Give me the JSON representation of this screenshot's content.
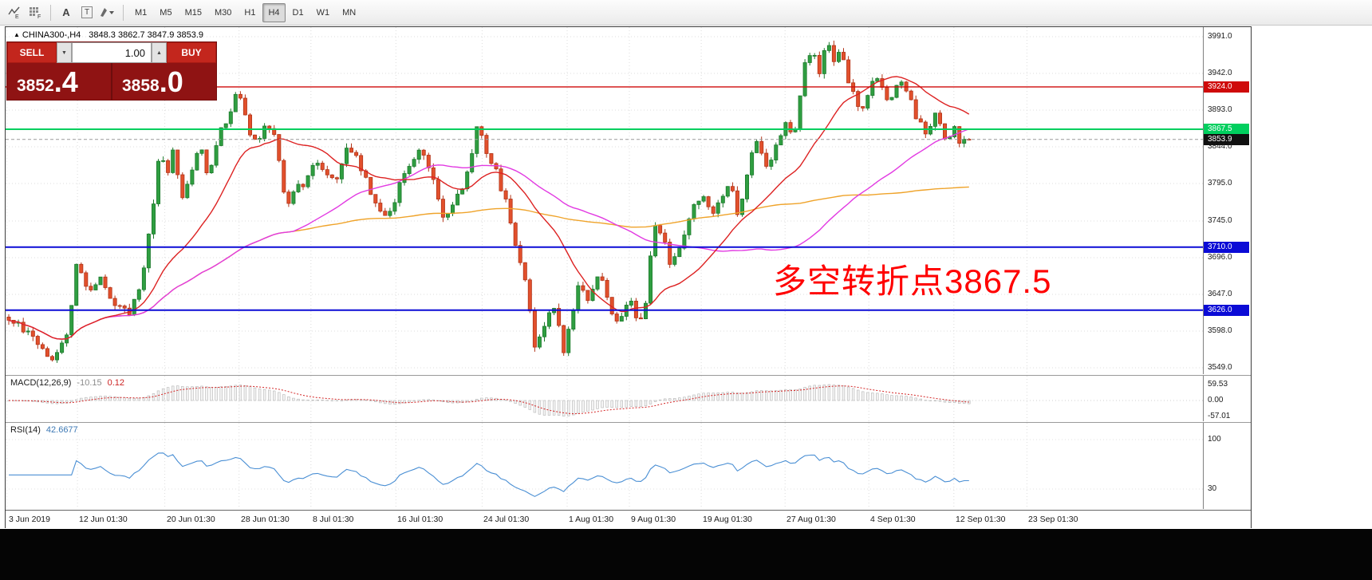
{
  "toolbar": {
    "icons": [
      {
        "name": "line-studies-icon",
        "sub": "E"
      },
      {
        "name": "indicator-grid-icon",
        "sub": "F"
      },
      {
        "name": "font-tool-icon",
        "glyph": "A"
      },
      {
        "name": "text-label-tool-icon",
        "glyph": "T"
      },
      {
        "name": "shapes-tool-icon"
      },
      {
        "name": "dropdown-chevron-icon"
      }
    ],
    "timeframes": [
      {
        "label": "M1",
        "active": false
      },
      {
        "label": "M5",
        "active": false
      },
      {
        "label": "M15",
        "active": false
      },
      {
        "label": "M30",
        "active": false
      },
      {
        "label": "H1",
        "active": false
      },
      {
        "label": "H4",
        "active": true
      },
      {
        "label": "D1",
        "active": false
      },
      {
        "label": "W1",
        "active": false
      },
      {
        "label": "MN",
        "active": false
      }
    ]
  },
  "chart": {
    "header": {
      "marker": "▲",
      "title": "CHINA300-,H4",
      "ohlc": "3848.3 3862.7 3847.9 3853.9"
    },
    "trade_panel": {
      "sell_label": "SELL",
      "buy_label": "BUY",
      "volume": "1.00",
      "down_glyph": "▼",
      "up_glyph": "▲",
      "bid_main": "3852",
      "bid_frac": ".4",
      "ask_main": "3858",
      "ask_frac": ".0"
    },
    "annotation": "多空转折点3867.5",
    "y_range": {
      "top": 3991.0,
      "bottom": 3549.0
    },
    "price_axis_labels": [
      "3991.0",
      "3942.0",
      "3893.0",
      "3844.0",
      "3795.0",
      "3745.0",
      "3696.0",
      "3647.0",
      "3598.0",
      "3549.0"
    ],
    "hlines": [
      {
        "price": 3924.0,
        "label": "3924.0",
        "color": "#cf0a0a",
        "width": 1.4,
        "style": "solid"
      },
      {
        "price": 3867.5,
        "label": "3867.5",
        "color": "#00cf5e",
        "width": 2,
        "style": "solid"
      },
      {
        "price": 3853.9,
        "label": "3853.9",
        "color": "#9a9a9a",
        "tag_bg": "#101010",
        "width": 1,
        "style": "dashed"
      },
      {
        "price": 3710.0,
        "label": "3710.0",
        "color": "#0b0bd6",
        "width": 2,
        "style": "solid"
      },
      {
        "price": 3626.0,
        "label": "3626.0",
        "color": "#0b0bd6",
        "width": 2,
        "style": "solid"
      }
    ]
  },
  "macd": {
    "name": "MACD(12,26,9)",
    "main_value": "-10.15",
    "signal_value": "0.12",
    "axis_labels": [
      "59.53",
      "0.00",
      "-57.01"
    ]
  },
  "rsi": {
    "name": "RSI(14)",
    "value": "42.6677",
    "axis_labels": [
      {
        "label": "100",
        "value": 100
      },
      {
        "label": "30",
        "value": 30
      }
    ]
  },
  "time_axis": [
    {
      "label": "3 Jun 2019",
      "t": 0.001
    },
    {
      "label": "12 Jun 01:30",
      "t": 0.06
    },
    {
      "label": "20 Jun 01:30",
      "t": 0.133
    },
    {
      "label": "28 Jun 01:30",
      "t": 0.195
    },
    {
      "label": "8 Jul 01:30",
      "t": 0.255
    },
    {
      "label": "16 Jul 01:30",
      "t": 0.326
    },
    {
      "label": "24 Jul 01:30",
      "t": 0.398
    },
    {
      "label": "1 Aug 01:30",
      "t": 0.469
    },
    {
      "label": "9 Aug 01:30",
      "t": 0.521
    },
    {
      "label": "19 Aug 01:30",
      "t": 0.581
    },
    {
      "label": "27 Aug 01:30",
      "t": 0.651
    },
    {
      "label": "4 Sep 01:30",
      "t": 0.721
    },
    {
      "label": "12 Sep 01:30",
      "t": 0.792
    },
    {
      "label": "23 Sep 01:30",
      "t": 0.853
    }
  ],
  "chart_data": {
    "type": "candlestick",
    "symbol": "CHINA300-",
    "timeframe": "H4",
    "current": {
      "open": 3848.3,
      "high": 3862.7,
      "low": 3847.9,
      "close": 3853.9,
      "bid": 3852.4,
      "ask": 3858.0
    },
    "levels": {
      "resistance": 3924.0,
      "pivot": 3867.5,
      "support1": 3710.0,
      "support2": 3626.0
    },
    "indicators": {
      "macd_main": -10.15,
      "macd_signal": 0.12,
      "rsi": 42.6677
    },
    "candle_count": 200,
    "span_fraction": 0.806,
    "seed": 12,
    "last_close": 3853.9,
    "price_anchors": [
      [
        0,
        3618
      ],
      [
        0.02,
        3598
      ],
      [
        0.045,
        3562
      ],
      [
        0.062,
        3600
      ],
      [
        0.07,
        3688
      ],
      [
        0.082,
        3655
      ],
      [
        0.095,
        3668
      ],
      [
        0.11,
        3632
      ],
      [
        0.125,
        3622
      ],
      [
        0.136,
        3648
      ],
      [
        0.15,
        3758
      ],
      [
        0.157,
        3845
      ],
      [
        0.165,
        3812
      ],
      [
        0.172,
        3840
      ],
      [
        0.18,
        3778
      ],
      [
        0.19,
        3812
      ],
      [
        0.2,
        3845
      ],
      [
        0.208,
        3795
      ],
      [
        0.218,
        3855
      ],
      [
        0.232,
        3898
      ],
      [
        0.24,
        3922
      ],
      [
        0.25,
        3868
      ],
      [
        0.258,
        3848
      ],
      [
        0.268,
        3872
      ],
      [
        0.278,
        3855
      ],
      [
        0.29,
        3760
      ],
      [
        0.3,
        3788
      ],
      [
        0.31,
        3802
      ],
      [
        0.32,
        3825
      ],
      [
        0.33,
        3808
      ],
      [
        0.34,
        3798
      ],
      [
        0.352,
        3845
      ],
      [
        0.362,
        3828
      ],
      [
        0.372,
        3802
      ],
      [
        0.385,
        3760
      ],
      [
        0.395,
        3748
      ],
      [
        0.408,
        3798
      ],
      [
        0.418,
        3822
      ],
      [
        0.428,
        3838
      ],
      [
        0.44,
        3812
      ],
      [
        0.452,
        3748
      ],
      [
        0.462,
        3768
      ],
      [
        0.475,
        3800
      ],
      [
        0.488,
        3868
      ],
      [
        0.498,
        3838
      ],
      [
        0.508,
        3808
      ],
      [
        0.518,
        3772
      ],
      [
        0.528,
        3710
      ],
      [
        0.535,
        3688
      ],
      [
        0.542,
        3625
      ],
      [
        0.548,
        3578
      ],
      [
        0.556,
        3600
      ],
      [
        0.565,
        3638
      ],
      [
        0.572,
        3610
      ],
      [
        0.578,
        3572
      ],
      [
        0.585,
        3618
      ],
      [
        0.595,
        3662
      ],
      [
        0.605,
        3638
      ],
      [
        0.615,
        3672
      ],
      [
        0.625,
        3642
      ],
      [
        0.632,
        3605
      ],
      [
        0.64,
        3618
      ],
      [
        0.648,
        3640
      ],
      [
        0.655,
        3600
      ],
      [
        0.662,
        3625
      ],
      [
        0.672,
        3742
      ],
      [
        0.682,
        3718
      ],
      [
        0.69,
        3682
      ],
      [
        0.7,
        3718
      ],
      [
        0.712,
        3758
      ],
      [
        0.722,
        3788
      ],
      [
        0.732,
        3752
      ],
      [
        0.742,
        3772
      ],
      [
        0.752,
        3792
      ],
      [
        0.76,
        3748
      ],
      [
        0.768,
        3802
      ],
      [
        0.778,
        3858
      ],
      [
        0.788,
        3812
      ],
      [
        0.798,
        3842
      ],
      [
        0.808,
        3872
      ],
      [
        0.818,
        3860
      ],
      [
        0.828,
        3952
      ],
      [
        0.838,
        3972
      ],
      [
        0.845,
        3942
      ],
      [
        0.852,
        3986
      ],
      [
        0.858,
        3952
      ],
      [
        0.865,
        3978
      ],
      [
        0.872,
        3942
      ],
      [
        0.88,
        3912
      ],
      [
        0.888,
        3892
      ],
      [
        0.895,
        3918
      ],
      [
        0.902,
        3942
      ],
      [
        0.91,
        3928
      ],
      [
        0.918,
        3902
      ],
      [
        0.928,
        3942
      ],
      [
        0.935,
        3918
      ],
      [
        0.945,
        3882
      ],
      [
        0.955,
        3862
      ],
      [
        0.965,
        3888
      ],
      [
        0.975,
        3852
      ],
      [
        0.985,
        3868
      ],
      [
        0.993,
        3846
      ],
      [
        1,
        3853.9
      ]
    ],
    "ma_periods": {
      "fast": 20,
      "mid": 60,
      "slow": 130
    },
    "macd_params": {
      "fast": 12,
      "slow": 26,
      "signal": 9
    },
    "rsi_period": 14,
    "colors": {
      "up": "#2f9e41",
      "up_stroke": "#1d7a2c",
      "down": "#e2502c",
      "down_stroke": "#b23418",
      "ma_fast": "#dd2222",
      "ma_mid": "#e23ae2",
      "ma_slow": "#efa32a",
      "macd_bar_fill": "#f4f4f4",
      "macd_bar_stroke": "#b5b5b5",
      "macd_signal": "#d32626",
      "rsi_line": "#4a8fd4",
      "grid": "#dcdcdc"
    }
  }
}
